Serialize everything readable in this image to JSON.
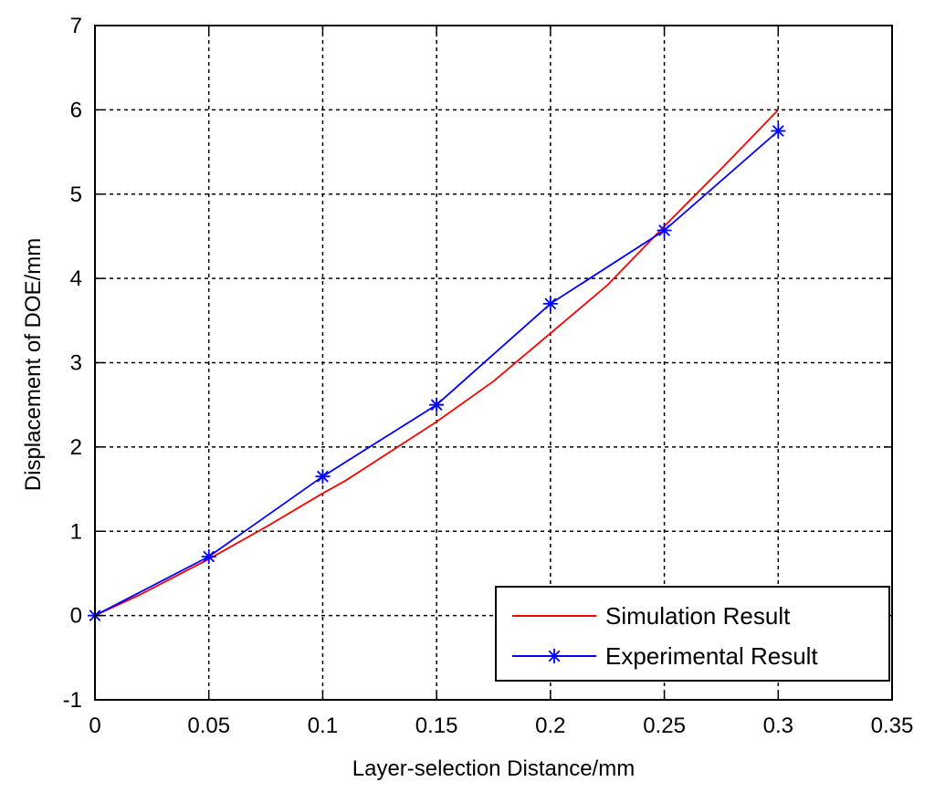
{
  "chart_data": {
    "type": "line",
    "xlabel": "Layer-selection Distance/mm",
    "ylabel": "Displacement of DOE/mm",
    "xlim": [
      0,
      0.35
    ],
    "ylim": [
      -1,
      7
    ],
    "x_ticks": [
      0,
      0.05,
      0.1,
      0.15,
      0.2,
      0.25,
      0.3,
      0.35
    ],
    "x_tick_labels": [
      "0",
      "0.05",
      "0.1",
      "0.15",
      "0.2",
      "0.25",
      "0.3",
      "0.35"
    ],
    "y_ticks": [
      -1,
      0,
      1,
      2,
      3,
      4,
      5,
      6,
      7
    ],
    "y_tick_labels": [
      "-1",
      "0",
      "1",
      "2",
      "3",
      "4",
      "5",
      "6",
      "7"
    ],
    "grid": true,
    "legend_position": "bottom-right",
    "series": [
      {
        "name": "Simulation Result",
        "color": "#ff0000",
        "marker": "none",
        "x": [
          0,
          0.02,
          0.05,
          0.075,
          0.1,
          0.11,
          0.15,
          0.175,
          0.2,
          0.225,
          0.25,
          0.275,
          0.3
        ],
        "y": [
          0,
          0.25,
          0.67,
          1.05,
          1.45,
          1.6,
          2.3,
          2.78,
          3.35,
          3.92,
          4.62,
          5.3,
          6.0
        ]
      },
      {
        "name": "Experimental Result",
        "color": "#0000ff",
        "marker": "asterisk",
        "x": [
          0,
          0.05,
          0.1,
          0.15,
          0.2,
          0.25,
          0.3
        ],
        "y": [
          0,
          0.7,
          1.65,
          2.5,
          3.7,
          4.57,
          5.75
        ]
      }
    ]
  }
}
